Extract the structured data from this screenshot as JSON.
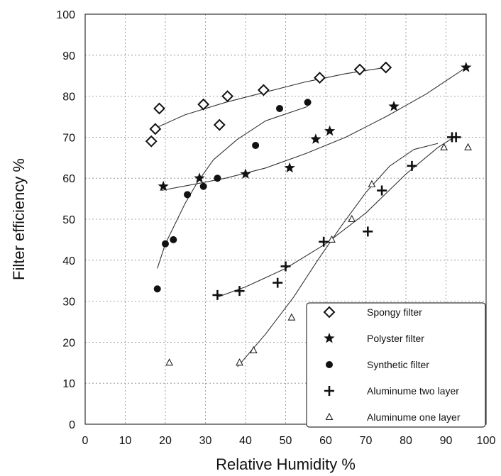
{
  "chart_data": {
    "type": "scatter",
    "title": "",
    "xlabel": "Relative Humidity %",
    "ylabel": "Filter efficiency %",
    "xlim": [
      0,
      100
    ],
    "ylim": [
      0,
      100
    ],
    "x_ticks": [
      "0",
      "10",
      "20",
      "30",
      "40",
      "50",
      "60",
      "70",
      "80",
      "90",
      "100"
    ],
    "y_ticks": [
      "0",
      "10",
      "20",
      "30",
      "40",
      "50",
      "60",
      "70",
      "80",
      "90",
      "100"
    ],
    "grid": true,
    "legend_position": "bottom-right",
    "series": [
      {
        "name": "Spongy filter",
        "marker": "diamond",
        "points": [
          [
            16.5,
            69
          ],
          [
            17.5,
            72
          ],
          [
            18.5,
            77
          ],
          [
            29.5,
            78
          ],
          [
            33.5,
            73
          ],
          [
            35.5,
            80
          ],
          [
            44.5,
            81.5
          ],
          [
            58.5,
            84.5
          ],
          [
            68.5,
            86.5
          ],
          [
            75,
            87
          ]
        ],
        "trend": [
          [
            17,
            72
          ],
          [
            25,
            75.5
          ],
          [
            35,
            78.5
          ],
          [
            45,
            81
          ],
          [
            55,
            83.5
          ],
          [
            65,
            85.5
          ],
          [
            75,
            87
          ]
        ]
      },
      {
        "name": "Polyster filter",
        "marker": "star",
        "points": [
          [
            19.5,
            58
          ],
          [
            28.5,
            60
          ],
          [
            40,
            61
          ],
          [
            51,
            62.5
          ],
          [
            57.5,
            69.5
          ],
          [
            61,
            71.5
          ],
          [
            77,
            77.5
          ],
          [
            95,
            87
          ]
        ],
        "trend": [
          [
            19,
            57
          ],
          [
            27,
            58.5
          ],
          [
            35,
            60
          ],
          [
            45,
            62.5
          ],
          [
            55,
            66
          ],
          [
            65,
            70
          ],
          [
            75,
            75
          ],
          [
            85,
            80.5
          ],
          [
            95,
            87
          ]
        ]
      },
      {
        "name": "Synthetic filter",
        "marker": "circle",
        "points": [
          [
            18,
            33
          ],
          [
            20,
            44
          ],
          [
            22,
            45
          ],
          [
            25.5,
            56
          ],
          [
            29.5,
            58
          ],
          [
            33,
            60
          ],
          [
            42.5,
            68
          ],
          [
            48.5,
            77
          ],
          [
            55.5,
            78.5
          ]
        ],
        "trend": [
          [
            18,
            38
          ],
          [
            20,
            44
          ],
          [
            22,
            48
          ],
          [
            25,
            54
          ],
          [
            28,
            59
          ],
          [
            32,
            64.5
          ],
          [
            38,
            69.5
          ],
          [
            45,
            74
          ],
          [
            55.5,
            77.5
          ]
        ]
      },
      {
        "name": "Aluminume two layer",
        "marker": "plus",
        "points": [
          [
            33,
            31.5
          ],
          [
            38.5,
            32.5
          ],
          [
            48,
            34.5
          ],
          [
            50,
            38.5
          ],
          [
            59.5,
            44.5
          ],
          [
            70.5,
            47
          ],
          [
            74,
            57
          ],
          [
            81.5,
            63
          ],
          [
            91.5,
            70
          ],
          [
            92.5,
            70
          ]
        ],
        "trend": [
          [
            33,
            31
          ],
          [
            40,
            33.5
          ],
          [
            50,
            38
          ],
          [
            60,
            44
          ],
          [
            70,
            51.5
          ],
          [
            80,
            61
          ],
          [
            88,
            67.5
          ],
          [
            92,
            70
          ]
        ]
      },
      {
        "name": "Aluminume one layer",
        "marker": "triangle",
        "points": [
          [
            21,
            15
          ],
          [
            38.5,
            15
          ],
          [
            42,
            18
          ],
          [
            51.5,
            26
          ],
          [
            61.5,
            45
          ],
          [
            66.5,
            50
          ],
          [
            71.5,
            58.5
          ],
          [
            89.5,
            67.5
          ],
          [
            95.5,
            67.5
          ]
        ],
        "trend": [
          [
            38,
            14
          ],
          [
            45,
            22
          ],
          [
            52,
            31
          ],
          [
            58,
            40
          ],
          [
            64,
            48.5
          ],
          [
            70,
            56.5
          ],
          [
            76,
            63
          ],
          [
            82,
            67
          ],
          [
            88,
            68.5
          ]
        ]
      }
    ]
  }
}
